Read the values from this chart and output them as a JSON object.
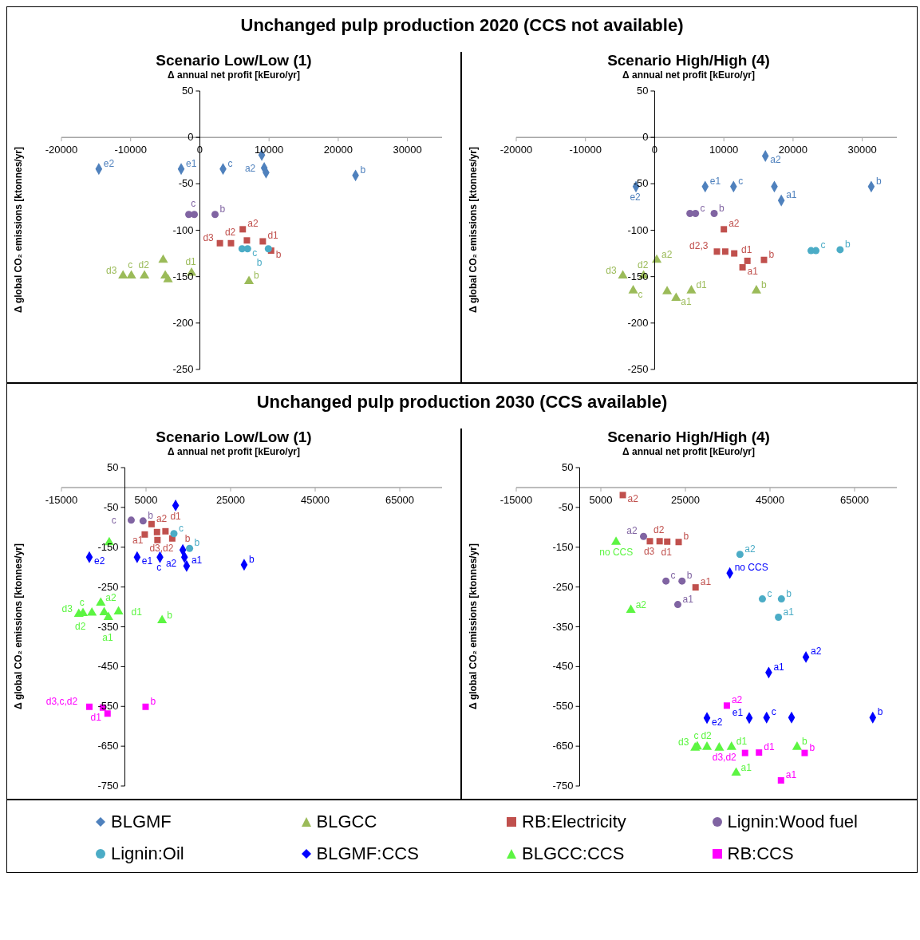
{
  "chart_data": [
    {
      "type": "scatter",
      "title": "Scenario Low/Low (1)",
      "xlabel": "Δ annual net profit [kEuro/yr]",
      "ylabel": "Δ global CO₂ emissions [ktonnes/yr]",
      "annotations": [
        "Unchanged pulp production 2020 (CCS not available)"
      ],
      "xlim": [
        -20000,
        35000
      ],
      "xticks": [
        -20000,
        -10000,
        0,
        10000,
        20000,
        30000
      ],
      "ylim": [
        -250,
        50
      ],
      "yticks": [
        -250,
        -200,
        -150,
        -100,
        -50,
        0,
        50
      ],
      "grid": false,
      "legend": "bottom",
      "series": [
        {
          "name": "BLGMF",
          "color": "#4f81bd",
          "marker": "diamond",
          "x": [
            -14600,
            -2700,
            3350,
            8950,
            9300,
            9570,
            22500
          ],
          "values": [
            -34,
            -34,
            -34,
            -19,
            -33,
            -38,
            -41
          ],
          "value_labels": [
            "e2",
            "e1",
            "c",
            "a2",
            null,
            null,
            "b"
          ]
        },
        {
          "name": "BLGCC",
          "color": "#9bbb59",
          "marker": "triangle",
          "x": [
            -11100,
            -9900,
            -8000,
            -5300,
            -5000,
            -4600,
            -1200,
            7100
          ],
          "values": [
            -149,
            -149,
            -149,
            -132,
            -149,
            -153,
            -146,
            -155
          ],
          "value_labels": [
            "d3",
            "c",
            "d2",
            null,
            null,
            null,
            "d1",
            "b"
          ]
        },
        {
          "name": "RB:Electricity",
          "color": "#c0504d",
          "marker": "square",
          "x": [
            6200,
            2900,
            4500,
            6800,
            9100,
            10300
          ],
          "values": [
            -99,
            -114,
            -114,
            -111,
            -112,
            -122
          ],
          "value_labels": [
            "a2",
            "d3",
            "d2",
            null,
            "d1",
            "b"
          ]
        },
        {
          "name": "Lignin:Wood fuel",
          "color": "#8064a2",
          "marker": "circle",
          "x": [
            -1600,
            -800,
            2200
          ],
          "values": [
            -83,
            -83,
            -83
          ],
          "value_labels": [
            null,
            "c",
            "b"
          ]
        },
        {
          "name": "Lignin:Oil",
          "color": "#4bacc6",
          "marker": "circle",
          "x": [
            6100,
            6900,
            9900
          ],
          "values": [
            -120,
            -120,
            -120
          ],
          "value_labels": [
            null,
            "c",
            "b"
          ]
        }
      ]
    },
    {
      "type": "scatter",
      "title": "Scenario High/High (4)",
      "xlabel": "Δ annual net profit [kEuro/yr]",
      "ylabel": "Δ global CO₂ emissions [ktonnes/yr]",
      "xlim": [
        -20000,
        35000
      ],
      "xticks": [
        -20000,
        -10000,
        0,
        10000,
        20000,
        30000
      ],
      "ylim": [
        -250,
        50
      ],
      "yticks": [
        -250,
        -200,
        -150,
        -100,
        -50,
        0,
        50
      ],
      "grid": false,
      "series": [
        {
          "color": "#4f81bd",
          "marker": "diamond",
          "x": [
            -2700,
            7300,
            11400,
            16000,
            17300,
            18300,
            31300
          ],
          "values": [
            -53,
            -53,
            -53,
            -20,
            -53,
            -68,
            -53
          ],
          "value_labels": [
            "e2",
            "e1",
            "c",
            "a2",
            null,
            "a1",
            "b"
          ]
        },
        {
          "color": "#9bbb59",
          "marker": "triangle",
          "x": [
            -4600,
            -1600,
            300,
            -3100,
            1800,
            3100,
            5300,
            14700
          ],
          "values": [
            -149,
            -149,
            -132,
            -165,
            -166,
            -173,
            -165,
            -165
          ],
          "value_labels": [
            "d3",
            "d2",
            "a2",
            "c",
            null,
            "a1",
            "d1",
            "b"
          ]
        },
        {
          "color": "#c0504d",
          "marker": "square",
          "x": [
            10000,
            9000,
            10200,
            11500,
            13400,
            12700,
            15800
          ],
          "values": [
            -99,
            -123,
            -123,
            -125,
            -133,
            -140,
            -132
          ],
          "value_labels": [
            "a2",
            "d2,3",
            null,
            null,
            "d1",
            "a1",
            "b"
          ]
        },
        {
          "color": "#8064a2",
          "marker": "circle",
          "x": [
            5100,
            5900,
            8600
          ],
          "values": [
            -82,
            -82,
            -82
          ],
          "value_labels": [
            null,
            "c",
            "b"
          ]
        },
        {
          "color": "#4bacc6",
          "marker": "circle",
          "x": [
            22600,
            23300,
            26800
          ],
          "values": [
            -122,
            -122,
            -121
          ],
          "value_labels": [
            null,
            "c",
            "b"
          ]
        }
      ]
    },
    {
      "type": "scatter",
      "title": "Scenario Low/Low (1)",
      "xlabel": "Δ annual net profit [kEuro/yr]",
      "ylabel": "Δ global CO₂ emissions [ktonnes/yr]",
      "annotations": [
        "Unchanged pulp production 2030 (CCS available)"
      ],
      "xlim": [
        -15000,
        75000
      ],
      "xticks": [
        -15000,
        5000,
        25000,
        45000,
        65000
      ],
      "ylim": [
        -750,
        50
      ],
      "yticks": [
        -750,
        -650,
        -550,
        -450,
        -350,
        -250,
        -150,
        -50,
        50
      ],
      "grid": false,
      "legend": "bottom",
      "series": [
        {
          "color": "#c0504d",
          "marker": "square",
          "x": [
            6300,
            4700,
            7600,
            7700,
            9600,
            11200
          ],
          "values": [
            -92,
            -118,
            -112,
            -132,
            -110,
            -128
          ],
          "value_labels": [
            "a2",
            "d3,d2",
            null,
            "a1",
            "d1",
            "b"
          ]
        },
        {
          "color": "#8064a2",
          "marker": "circle",
          "x": [
            1500,
            4300
          ],
          "values": [
            -82,
            -84
          ],
          "value_labels": [
            "c",
            "b"
          ]
        },
        {
          "color": "#4bacc6",
          "marker": "circle",
          "x": [
            11600,
            15300
          ],
          "values": [
            -116,
            -153
          ],
          "value_labels": [
            "c",
            "b"
          ]
        },
        {
          "name": "BLGMF:CCS",
          "color": "#0000ff",
          "marker": "diamond",
          "x": [
            12000,
            13700,
            -8400,
            2900,
            8300,
            14100,
            14600,
            28200
          ],
          "values": [
            -45,
            -157,
            -175,
            -175,
            -175,
            -175,
            -197,
            -194
          ],
          "value_labels": [
            null,
            "a2",
            "e2",
            "e1",
            "c",
            null,
            "a1",
            "b"
          ]
        },
        {
          "name": "BLGCC:CCS",
          "color": "#5cf542",
          "marker": "triangle",
          "x": [
            -3700,
            -10900,
            -9900,
            -7800,
            -5700,
            -4900,
            -3900,
            -1500,
            8800
          ],
          "values": [
            -138,
            -318,
            -316,
            -315,
            -290,
            -314,
            -326,
            -312,
            -334
          ],
          "value_labels": [
            null,
            "d3",
            "c",
            "d2",
            "a2",
            null,
            "a1",
            "d1",
            "b"
          ]
        },
        {
          "name": "RB:CCS",
          "color": "#ff00ff",
          "marker": "square",
          "x": [
            -8400,
            -5200,
            -4100,
            4900
          ],
          "values": [
            -551,
            -553,
            -568,
            -551
          ],
          "value_labels": [
            "d3,c,d2",
            null,
            "d1",
            "b"
          ]
        }
      ]
    },
    {
      "type": "scatter",
      "title": "Scenario High/High (4)",
      "xlabel": "Δ annual net profit [kEuro/yr]",
      "ylabel": "Δ global CO₂ emissions [ktonnes/yr]",
      "xlim": [
        -15000,
        75000
      ],
      "xticks": [
        -15000,
        5000,
        25000,
        45000,
        65000
      ],
      "ylim": [
        -750,
        50
      ],
      "yticks": [
        -750,
        -650,
        -550,
        -450,
        -350,
        -250,
        -150,
        -50,
        50
      ],
      "grid": false,
      "series": [
        {
          "color": "#c0504d",
          "marker": "square",
          "x": [
            10200,
            16600,
            18900,
            20700,
            23400,
            27400
          ],
          "values": [
            -19,
            -135,
            -135,
            -136,
            -137,
            -251
          ],
          "value_labels": [
            "a2",
            "d3",
            "d2",
            "d1",
            "b",
            "a1"
          ]
        },
        {
          "color": "#8064a2",
          "marker": "circle",
          "x": [
            15100,
            20400,
            24200,
            23200
          ],
          "values": [
            -123,
            -235,
            -235,
            -294
          ],
          "value_labels": [
            "a2",
            "c",
            "b",
            "a1"
          ]
        },
        {
          "color": "#4bacc6",
          "marker": "circle",
          "x": [
            37900,
            43200,
            47700,
            47000
          ],
          "values": [
            -168,
            -280,
            -280,
            -326
          ],
          "value_labels": [
            "a2",
            "c",
            "b",
            "a1"
          ]
        },
        {
          "color": "#0000ff",
          "marker": "diamond",
          "x": [
            35500,
            53500,
            44700,
            30100,
            40100,
            44200,
            50100,
            69300
          ],
          "values": [
            -215,
            -426,
            -465,
            -579,
            -579,
            -578,
            -578,
            -578
          ],
          "value_labels": [
            "no CCS",
            "a2",
            "a1",
            "e2",
            "e1",
            "c",
            null,
            "b"
          ]
        },
        {
          "color": "#5cf542",
          "marker": "triangle",
          "x": [
            8600,
            12100,
            27800,
            27300,
            30100,
            33000,
            35900,
            37000,
            51400
          ],
          "values": [
            -137,
            -308,
            -651,
            -654,
            -652,
            -654,
            -652,
            -717,
            -652
          ],
          "value_labels": [
            "no CCS",
            "a2",
            "c",
            "d3",
            "d2",
            null,
            "d1",
            "a1",
            "b"
          ]
        },
        {
          "color": "#ff00ff",
          "marker": "square",
          "x": [
            34800,
            39100,
            42400,
            53200,
            47600
          ],
          "values": [
            -548,
            -667,
            -666,
            -667,
            -736
          ],
          "value_labels": [
            "a2",
            "d3,d2",
            "d1",
            "b",
            "a1"
          ]
        }
      ]
    }
  ]
}
